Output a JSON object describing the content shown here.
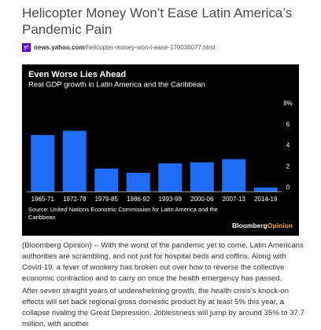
{
  "header": {
    "title": "Helicopter Money Won’t Ease Latin America’s Pandemic Pain",
    "domain": "news.yahoo.com",
    "path": "/helicopter-money-won-t-ease-170036077.html"
  },
  "chart_data": {
    "type": "bar",
    "title": "Even Worse Lies Ahead",
    "subtitle": "Real GDP growth in Latin America and the Caribbean",
    "categories": [
      "1965-71",
      "1972-78",
      "1979-85",
      "1986-92",
      "1993-99",
      "2000-06",
      "2007-13",
      "2014-19"
    ],
    "values": [
      5.4,
      5.8,
      2.2,
      1.8,
      2.7,
      2.8,
      3.1,
      0.4
    ],
    "color": "#1f6cf6",
    "ylim": [
      0,
      8
    ],
    "yticks": [
      0,
      2,
      4,
      6,
      {
        "value": 8,
        "label": "8%"
      }
    ],
    "source": "Source: United Nations Economic Commission for Latin America and the Caribbean",
    "logo": [
      "Bloomberg",
      "Opinion"
    ]
  },
  "paragraphs": [
    "(Bloomberg Opinion) -- With the worst of the pandemic yet to come, Latin Americans authorities are scrambling, and not just for hospital beds and coffins. Along with Covid-19, a fever of wonkery has broken out over how to reverse the collective economic contraction and to carry on once the health emergency has passed.",
    "After seven straight years of underwhelming growth, the health crisis’s knock-on effects will set back regional gross domestic product by at least 5% this year, a collapse rivaling the Great Depression. Joblessness will jump by around 35% to 37.7 million, with another"
  ]
}
